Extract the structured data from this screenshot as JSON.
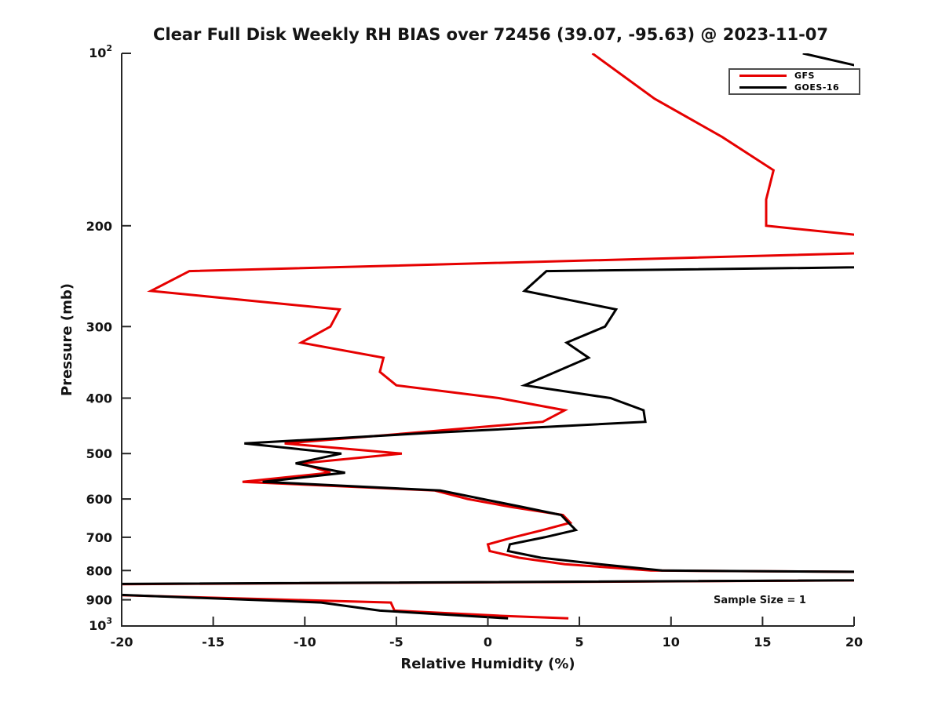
{
  "title": "Clear Full Disk Weekly RH BIAS over 72456 (39.07, -95.63) @ 2023-11-07",
  "annotation": "Sample Size = 1",
  "legend": {
    "items": [
      {
        "label": "GFS",
        "color": "#e60000"
      },
      {
        "label": "GOES-16",
        "color": "#000000"
      }
    ]
  },
  "chart_data": {
    "type": "line",
    "title": "Clear Full Disk Weekly RH BIAS over 72456 (39.07, -95.63) @ 2023-11-07",
    "xlabel": "Relative Humidity (%)",
    "ylabel": "Pressure (mb)",
    "xlim": [
      -20,
      20
    ],
    "ylim": [
      100,
      1000
    ],
    "yscale": "log",
    "y_axis_inverted": true,
    "grid": false,
    "legend_position": "upper right",
    "axis_color": "#262626",
    "x_ticks": [
      {
        "v": -20,
        "label": "-20"
      },
      {
        "v": -15,
        "label": "-15"
      },
      {
        "v": -10,
        "label": "-10"
      },
      {
        "v": -5,
        "label": "-5"
      },
      {
        "v": 0,
        "label": "0"
      },
      {
        "v": 5,
        "label": "5"
      },
      {
        "v": 10,
        "label": "10"
      },
      {
        "v": 15,
        "label": "15"
      },
      {
        "v": 20,
        "label": "20"
      }
    ],
    "y_ticks": [
      {
        "v": 100,
        "label": "10^2"
      },
      {
        "v": 200,
        "label": "200"
      },
      {
        "v": 300,
        "label": "300"
      },
      {
        "v": 400,
        "label": "400"
      },
      {
        "v": 500,
        "label": "500"
      },
      {
        "v": 600,
        "label": "600"
      },
      {
        "v": 700,
        "label": "700"
      },
      {
        "v": 800,
        "label": "800"
      },
      {
        "v": 900,
        "label": "900"
      },
      {
        "v": 1000,
        "label": "10^3"
      }
    ],
    "point_format": "[relative_humidity_percent, pressure_mb]",
    "clipping_note": "RH values beyond +/-20 are where the curve exits the plotted x-range and is clipped at the axes box",
    "series": [
      {
        "name": "GFS",
        "color": "#e60000",
        "points": [
          [
            5.7,
            100
          ],
          [
            9.1,
            120
          ],
          [
            12.8,
            140
          ],
          [
            15.6,
            160
          ],
          [
            15.2,
            180
          ],
          [
            15.2,
            200
          ],
          [
            28,
            220
          ],
          [
            -16.3,
            240
          ],
          [
            -18.4,
            260
          ],
          [
            -8.1,
            280
          ],
          [
            -8.6,
            300
          ],
          [
            -10.2,
            320
          ],
          [
            -5.7,
            340
          ],
          [
            -5.9,
            360
          ],
          [
            -5.0,
            380
          ],
          [
            0.6,
            400
          ],
          [
            4.2,
            420
          ],
          [
            3.0,
            440
          ],
          [
            -4.1,
            460
          ],
          [
            -11.1,
            480
          ],
          [
            -4.7,
            500
          ],
          [
            -10.2,
            520
          ],
          [
            -8.6,
            540
          ],
          [
            -13.4,
            560
          ],
          [
            -2.9,
            580
          ],
          [
            -1.1,
            600
          ],
          [
            1.3,
            620
          ],
          [
            4.1,
            640
          ],
          [
            4.5,
            660
          ],
          [
            3.0,
            680
          ],
          [
            1.4,
            700
          ],
          [
            0.0,
            720
          ],
          [
            0.1,
            740
          ],
          [
            1.7,
            760
          ],
          [
            4.2,
            780
          ],
          [
            8.9,
            800
          ],
          [
            60,
            820
          ],
          [
            -35,
            850
          ],
          [
            -22,
            880
          ],
          [
            -5.3,
            910
          ],
          [
            -5.1,
            940
          ],
          [
            0.8,
            960
          ],
          [
            4.4,
            970
          ]
        ]
      },
      {
        "name": "GOES-16",
        "color": "#000000",
        "points": [
          [
            17.2,
            100
          ],
          [
            28,
            120
          ],
          [
            60,
            140
          ],
          [
            80,
            160
          ],
          [
            90,
            180
          ],
          [
            100,
            200
          ],
          [
            100,
            220
          ],
          [
            3.2,
            240
          ],
          [
            2.0,
            260
          ],
          [
            7.0,
            280
          ],
          [
            6.4,
            300
          ],
          [
            4.3,
            320
          ],
          [
            5.5,
            340
          ],
          [
            3.7,
            360
          ],
          [
            2.0,
            380
          ],
          [
            6.7,
            400
          ],
          [
            8.5,
            420
          ],
          [
            8.6,
            440
          ],
          [
            -3.1,
            460
          ],
          [
            -13.3,
            480
          ],
          [
            -8.0,
            500
          ],
          [
            -10.5,
            520
          ],
          [
            -7.8,
            540
          ],
          [
            -12.3,
            560
          ],
          [
            -2.6,
            580
          ],
          [
            -0.3,
            600
          ],
          [
            1.9,
            620
          ],
          [
            4.0,
            640
          ],
          [
            4.4,
            660
          ],
          [
            4.8,
            680
          ],
          [
            3.1,
            700
          ],
          [
            1.2,
            720
          ],
          [
            1.1,
            740
          ],
          [
            2.9,
            760
          ],
          [
            6.1,
            780
          ],
          [
            9.5,
            800
          ],
          [
            60,
            820
          ],
          [
            -38,
            850
          ],
          [
            -21,
            880
          ],
          [
            -9.1,
            910
          ],
          [
            -5.9,
            940
          ],
          [
            1.1,
            970
          ]
        ]
      }
    ]
  }
}
